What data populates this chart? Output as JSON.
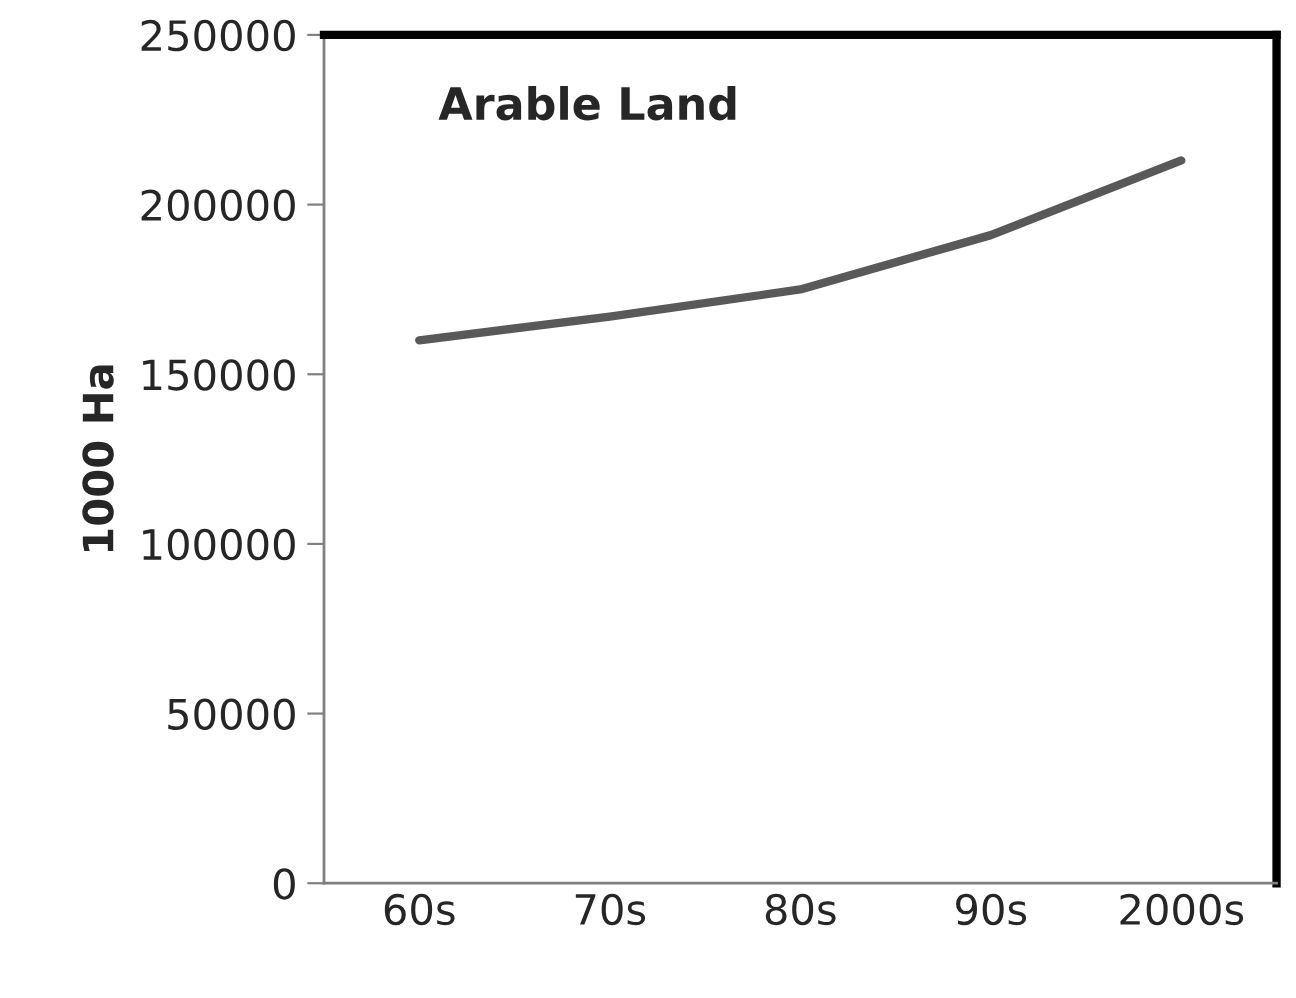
{
  "chart_data": {
    "type": "line",
    "title": "Arable Land",
    "ylabel": "1000 Ha",
    "categories": [
      "60s",
      "70s",
      "80s",
      "90s",
      "2000s"
    ],
    "series": [
      {
        "color": "#595959",
        "values": [
          160000,
          167000,
          175000,
          191000,
          213000
        ]
      }
    ],
    "ylim": [
      0,
      250000
    ],
    "yticks": [
      0,
      50000,
      100000,
      150000,
      200000,
      250000
    ],
    "grid": false,
    "legend": false,
    "marker": "none",
    "line_style": "solid"
  }
}
